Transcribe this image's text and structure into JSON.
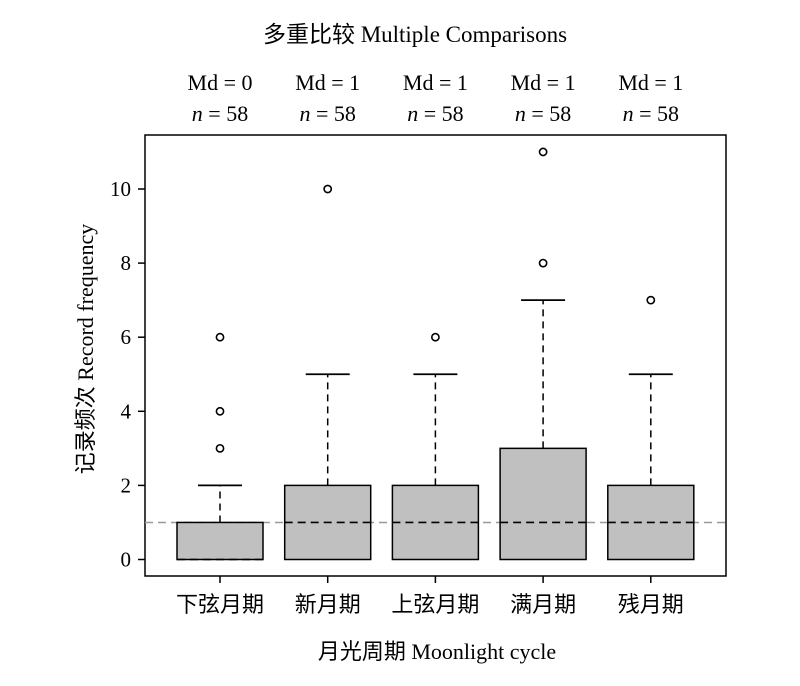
{
  "chart_data": {
    "type": "boxplot",
    "title": "多重比较 Multiple Comparisons",
    "xlabel": "月光周期 Moonlight cycle",
    "ylabel": "记录频次 Record frequency",
    "ylim": [
      -0.5,
      11.5
    ],
    "yticks": [
      "0",
      "2",
      "4",
      "6",
      "8",
      "10"
    ],
    "grid": false,
    "reference_line": 1,
    "categories": [
      "下弦月期",
      "新月期",
      "上弦月期",
      "满月期",
      "残月期"
    ],
    "headers": [
      {
        "md": "Md = 0",
        "n": "58"
      },
      {
        "md": "Md = 1",
        "n": "58"
      },
      {
        "md": "Md = 1",
        "n": "58"
      },
      {
        "md": "Md = 1",
        "n": "58"
      },
      {
        "md": "Md = 1",
        "n": "58"
      }
    ],
    "n_prefix": "n",
    "n_eq": " = ",
    "boxes": [
      {
        "q1": 0,
        "median": 0,
        "q3": 1,
        "whisker_low": 0,
        "whisker_high": 2,
        "outliers": [
          3,
          4,
          6
        ]
      },
      {
        "q1": 0,
        "median": 1,
        "q3": 2,
        "whisker_low": 0,
        "whisker_high": 5,
        "outliers": [
          10
        ]
      },
      {
        "q1": 0,
        "median": 1,
        "q3": 2,
        "whisker_low": 0,
        "whisker_high": 5,
        "outliers": [
          6
        ]
      },
      {
        "q1": 0,
        "median": 1,
        "q3": 3,
        "whisker_low": 0,
        "whisker_high": 7,
        "outliers": [
          8,
          11
        ]
      },
      {
        "q1": 0,
        "median": 1,
        "q3": 2,
        "whisker_low": 0,
        "whisker_high": 5,
        "outliers": [
          7
        ]
      }
    ],
    "colors": {
      "box_fill": "#c0c0c0",
      "stroke": "#000000",
      "reference": "#999999"
    }
  }
}
